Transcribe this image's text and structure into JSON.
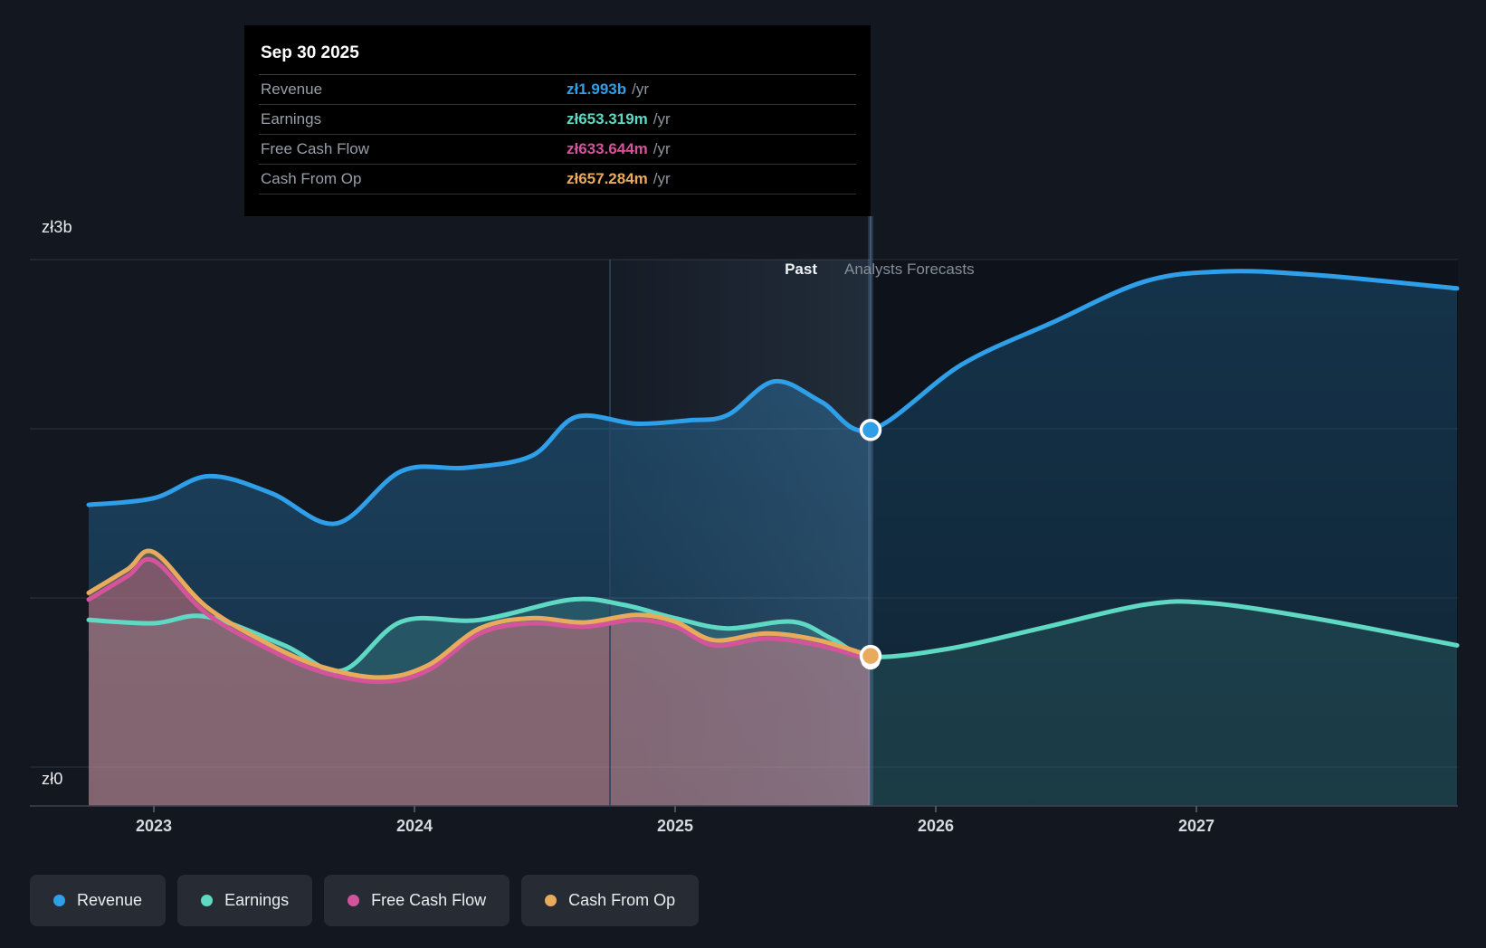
{
  "tooltip": {
    "date": "Sep 30 2025",
    "rows": [
      {
        "series": "revenue",
        "label": "Revenue",
        "value": "zł1.993b",
        "unit": "/yr"
      },
      {
        "series": "earnings",
        "label": "Earnings",
        "value": "zł653.319m",
        "unit": "/yr"
      },
      {
        "series": "free_cash_flow",
        "label": "Free Cash Flow",
        "value": "zł633.644m",
        "unit": "/yr"
      },
      {
        "series": "cash_from_op",
        "label": "Cash From Op",
        "value": "zł657.284m",
        "unit": "/yr"
      }
    ]
  },
  "annotations": {
    "past": "Past",
    "forecast": "Analysts Forecasts"
  },
  "axis": {
    "y_top_label": "zł3b",
    "y_bottom_label": "zł0",
    "x_labels": [
      "2023",
      "2024",
      "2025",
      "2026",
      "2027"
    ]
  },
  "legend": [
    {
      "series": "revenue",
      "label": "Revenue"
    },
    {
      "series": "earnings",
      "label": "Earnings"
    },
    {
      "series": "free_cash_flow",
      "label": "Free Cash Flow"
    },
    {
      "series": "cash_from_op",
      "label": "Cash From Op"
    }
  ],
  "colors": {
    "background": "#121720",
    "gridline": "#273039",
    "axis_line": "#3a424c",
    "divider_line": "#3c5a75",
    "band_line": "#2b4563",
    "tooltip_bg": "#000000",
    "revenue": "#2e9fe8",
    "earnings": "#5fd9c3",
    "free_cash_flow": "#d4549c",
    "cash_from_op": "#e8ab5e"
  },
  "chart_data": {
    "type": "line",
    "title": "Past and forecast Revenue / Earnings / Free Cash Flow / Cash From Op",
    "currency": "zł",
    "value_unit": "billions",
    "x_unit": "calendar year",
    "x_range": [
      2022.75,
      2028.0
    ],
    "ylim": [
      0,
      3
    ],
    "y_gridlines_b": [
      3,
      2,
      1,
      0
    ],
    "x_ticks": [
      2023,
      2024,
      2025,
      2026,
      2027
    ],
    "divider_x": 2025.75,
    "highlight_band": [
      2024.75,
      2025.75
    ],
    "legend_position": "bottom-left",
    "grid": true,
    "series": [
      {
        "id": "revenue",
        "name": "Revenue",
        "color": "#2e9fe8",
        "forecast_after": 2025.75,
        "points": [
          [
            2022.75,
            1.55
          ],
          [
            2023.0,
            1.59
          ],
          [
            2023.21,
            1.72
          ],
          [
            2023.45,
            1.62
          ],
          [
            2023.7,
            1.44
          ],
          [
            2023.95,
            1.75
          ],
          [
            2024.2,
            1.77
          ],
          [
            2024.45,
            1.84
          ],
          [
            2024.62,
            2.07
          ],
          [
            2024.85,
            2.03
          ],
          [
            2025.05,
            2.05
          ],
          [
            2025.2,
            2.08
          ],
          [
            2025.38,
            2.28
          ],
          [
            2025.56,
            2.16
          ],
          [
            2025.75,
            1.993
          ],
          [
            2026.1,
            2.38
          ],
          [
            2026.45,
            2.63
          ],
          [
            2026.8,
            2.87
          ],
          [
            2027.1,
            2.93
          ],
          [
            2027.45,
            2.91
          ],
          [
            2028.0,
            2.83
          ]
        ]
      },
      {
        "id": "earnings",
        "name": "Earnings",
        "color": "#5fd9c3",
        "forecast_after": 2025.75,
        "points": [
          [
            2022.75,
            0.87
          ],
          [
            2023.0,
            0.85
          ],
          [
            2023.2,
            0.89
          ],
          [
            2023.5,
            0.72
          ],
          [
            2023.72,
            0.57
          ],
          [
            2023.95,
            0.86
          ],
          [
            2024.25,
            0.87
          ],
          [
            2024.6,
            0.99
          ],
          [
            2024.8,
            0.96
          ],
          [
            2025.0,
            0.88
          ],
          [
            2025.2,
            0.82
          ],
          [
            2025.45,
            0.86
          ],
          [
            2025.6,
            0.76
          ],
          [
            2025.75,
            0.653
          ],
          [
            2026.05,
            0.7
          ],
          [
            2026.4,
            0.82
          ],
          [
            2026.8,
            0.96
          ],
          [
            2027.05,
            0.97
          ],
          [
            2027.45,
            0.88
          ],
          [
            2028.0,
            0.72
          ]
        ]
      },
      {
        "id": "cash_from_op",
        "name": "Cash From Op",
        "color": "#e8ab5e",
        "forecast_after": null,
        "points": [
          [
            2022.75,
            1.03
          ],
          [
            2022.9,
            1.17
          ],
          [
            2023.0,
            1.27
          ],
          [
            2023.2,
            0.95
          ],
          [
            2023.45,
            0.72
          ],
          [
            2023.65,
            0.59
          ],
          [
            2023.87,
            0.53
          ],
          [
            2024.05,
            0.6
          ],
          [
            2024.25,
            0.82
          ],
          [
            2024.45,
            0.88
          ],
          [
            2024.65,
            0.855
          ],
          [
            2024.85,
            0.9
          ],
          [
            2025.0,
            0.86
          ],
          [
            2025.15,
            0.75
          ],
          [
            2025.35,
            0.79
          ],
          [
            2025.55,
            0.75
          ],
          [
            2025.75,
            0.657
          ]
        ]
      },
      {
        "id": "free_cash_flow",
        "name": "Free Cash Flow",
        "color": "#d4549c",
        "forecast_after": null,
        "points": [
          [
            2022.75,
            0.99
          ],
          [
            2022.9,
            1.13
          ],
          [
            2023.0,
            1.22
          ],
          [
            2023.2,
            0.91
          ],
          [
            2023.45,
            0.69
          ],
          [
            2023.65,
            0.56
          ],
          [
            2023.87,
            0.505
          ],
          [
            2024.05,
            0.57
          ],
          [
            2024.25,
            0.79
          ],
          [
            2024.45,
            0.85
          ],
          [
            2024.65,
            0.83
          ],
          [
            2024.85,
            0.87
          ],
          [
            2025.0,
            0.83
          ],
          [
            2025.15,
            0.72
          ],
          [
            2025.35,
            0.76
          ],
          [
            2025.55,
            0.72
          ],
          [
            2025.75,
            0.634
          ]
        ]
      }
    ],
    "marker_points": [
      {
        "series": "revenue",
        "x": 2025.75,
        "value_b": 1.993
      },
      {
        "series": "cash_from_op",
        "x": 2025.75,
        "value_b": 0.657
      },
      {
        "series": "free_cash_flow",
        "x": 2025.75,
        "value_b": 0.634
      },
      {
        "series": "earnings",
        "x": 2025.75,
        "value_b": 0.653
      }
    ]
  }
}
